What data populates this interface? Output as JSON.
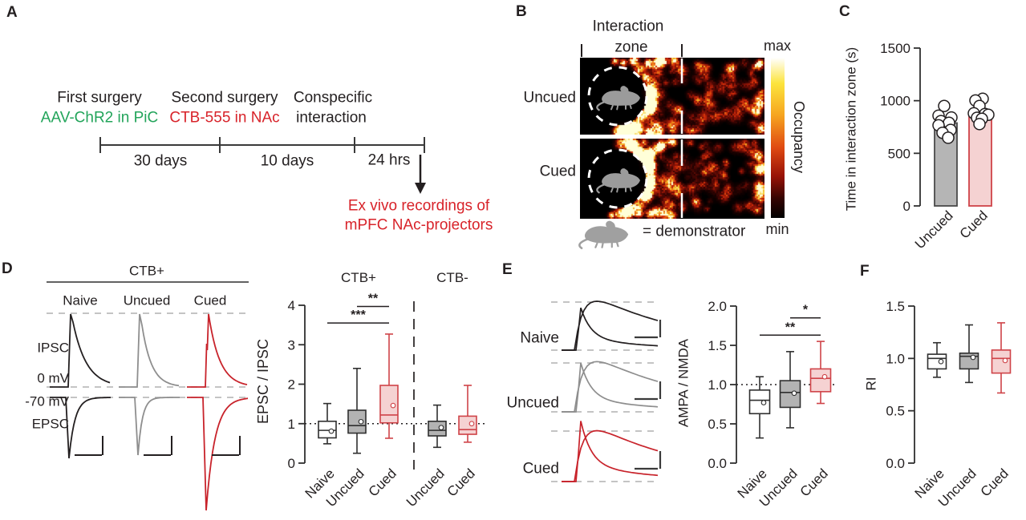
{
  "colors": {
    "ink": "#231f20",
    "green": "#22a45a",
    "red": "#d8232a",
    "trace_colors": [
      "#231f20",
      "#8e8e8e",
      "#c8232b"
    ],
    "dash_gray": "#b0b0b0",
    "gray_fill": "#b3b3b3",
    "pink_fill": "#f5d2d2",
    "pink_stroke": "#cf4348"
  },
  "panels": {
    "A": {
      "label": "A",
      "events": [
        {
          "title": "First surgery",
          "subtitle": "AAV-ChR2 in PiC"
        },
        {
          "title": "Second surgery",
          "subtitle": "CTB-555 in NAc"
        },
        {
          "title": "Conspecific",
          "subtitle": "interaction"
        }
      ],
      "durations": [
        "30 days",
        "10 days",
        "24 hrs"
      ],
      "outcome_line1": "Ex vivo recordings of",
      "outcome_line2": "mPFC NAc-projectors"
    },
    "B": {
      "label": "B",
      "zone_title_line1": "Interaction",
      "zone_title_line2": "zone",
      "row_labels": [
        "Uncued",
        "Cued"
      ],
      "colorbar_max": "max",
      "colorbar_min": "min",
      "colorbar_label": "Occupancy",
      "legend_text": "= demonstrator"
    },
    "C": {
      "label": "C"
    },
    "D": {
      "label": "D",
      "traces": {
        "header": "CTB+",
        "columns": [
          "Naive",
          "Uncued",
          "Cued"
        ],
        "left_labels": [
          "IPSC",
          "0 mV",
          "-70 mV",
          "EPSC"
        ]
      }
    },
    "E": {
      "label": "E",
      "traces": {
        "rows": [
          "Naive",
          "Uncued",
          "Cued"
        ]
      }
    },
    "F": {
      "label": "F"
    }
  },
  "chart_data": [
    {
      "id": "C",
      "type": "bar",
      "ylabel": "Time in interaction zone (s)",
      "ylim": [
        0,
        1500
      ],
      "ytick_values": [
        0,
        500,
        1000,
        1500
      ],
      "yticks": [
        "0",
        "500",
        "1000",
        "1500"
      ],
      "categories": [
        "Uncued",
        "Cued"
      ],
      "values": [
        788,
        872
      ],
      "points": [
        [
          950,
          858,
          840,
          806,
          790,
          766,
          722,
          695,
          648
        ],
        [
          1018,
          1002,
          950,
          880,
          874,
          866,
          838,
          828,
          778
        ]
      ],
      "bars": [
        {
          "fill": "#b5b5b5",
          "stroke": "#4a4a4a"
        },
        {
          "fill": "#f5d2d2",
          "stroke": "#cf4348"
        }
      ]
    },
    {
      "id": "D",
      "type": "box",
      "ylabel": "EPSC / IPSC",
      "ylim": [
        0,
        4
      ],
      "ytick_values": [
        0,
        1,
        2,
        3,
        4
      ],
      "yticks": [
        "0",
        "1",
        "2",
        "3",
        "4"
      ],
      "refline": 1,
      "sections": [
        "CTB+",
        "CTB-"
      ],
      "categories": [
        "Naive",
        "Uncued",
        "Cued",
        "Uncued",
        "Cued"
      ],
      "groups": [
        {
          "label": "Naive",
          "lo": 0.49,
          "q1": 0.64,
          "med": 0.83,
          "q3": 1.06,
          "hi": 1.51,
          "mean": 0.81,
          "fill": "#ffffff",
          "stroke": "#2f2f2f"
        },
        {
          "label": "Uncued",
          "lo": 0.25,
          "q1": 0.76,
          "med": 0.95,
          "q3": 1.34,
          "hi": 2.4,
          "mean": 1.05,
          "fill": "#b3b3b3",
          "stroke": "#2f2f2f"
        },
        {
          "label": "Cued",
          "lo": 0.63,
          "q1": 1.02,
          "med": 1.22,
          "q3": 1.97,
          "hi": 3.27,
          "mean": 1.46,
          "fill": "#f5d2d2",
          "stroke": "#cf4348"
        },
        {
          "label": "Uncued",
          "lo": 0.4,
          "q1": 0.69,
          "med": 0.83,
          "q3": 1.06,
          "hi": 1.47,
          "mean": 0.9,
          "fill": "#b3b3b3",
          "stroke": "#2f2f2f"
        },
        {
          "label": "Cued",
          "lo": 0.53,
          "q1": 0.73,
          "med": 0.85,
          "q3": 1.19,
          "hi": 1.97,
          "mean": 1.0,
          "fill": "#f5d2d2",
          "stroke": "#cf4348"
        }
      ],
      "significance": [
        {
          "from": 0,
          "to": 2,
          "label": "***",
          "y": 3.55
        },
        {
          "from": 1,
          "to": 2,
          "label": "**",
          "y": 3.97
        }
      ]
    },
    {
      "id": "E",
      "type": "box",
      "ylabel": "AMPA / NMDA",
      "ylim": [
        0,
        2
      ],
      "ytick_values": [
        0,
        0.5,
        1,
        1.5,
        2
      ],
      "yticks": [
        "0.0",
        "0.5",
        "1.0",
        "1.5",
        "2.0"
      ],
      "refline": 1,
      "categories": [
        "Naive",
        "Uncued",
        "Cued"
      ],
      "groups": [
        {
          "label": "Naive",
          "lo": 0.32,
          "q1": 0.63,
          "med": 0.8,
          "q3": 0.93,
          "hi": 1.1,
          "mean": 0.77,
          "fill": "#ffffff",
          "stroke": "#2f2f2f"
        },
        {
          "label": "Uncued",
          "lo": 0.45,
          "q1": 0.71,
          "med": 0.9,
          "q3": 1.05,
          "hi": 1.42,
          "mean": 0.89,
          "fill": "#b3b3b3",
          "stroke": "#2f2f2f"
        },
        {
          "label": "Cued",
          "lo": 0.76,
          "q1": 0.91,
          "med": 1.08,
          "q3": 1.2,
          "hi": 1.55,
          "mean": 1.1,
          "fill": "#f5d2d2",
          "stroke": "#cf4348"
        }
      ],
      "significance": [
        {
          "from": 0,
          "to": 2,
          "label": "**",
          "y": 1.63
        },
        {
          "from": 1,
          "to": 2,
          "label": "*",
          "y": 1.85
        }
      ]
    },
    {
      "id": "F",
      "type": "box",
      "ylabel": "RI",
      "ylim": [
        0,
        1.5
      ],
      "ytick_values": [
        0,
        0.5,
        1,
        1.5
      ],
      "yticks": [
        "0.0",
        "0.5",
        "1.0",
        "1.5"
      ],
      "categories": [
        "Naive",
        "Uncued",
        "Cued"
      ],
      "groups": [
        {
          "label": "Naive",
          "lo": 0.82,
          "q1": 0.9,
          "med": 1.0,
          "q3": 1.04,
          "hi": 1.15,
          "mean": 0.97,
          "fill": "#ffffff",
          "stroke": "#2f2f2f"
        },
        {
          "label": "Uncued",
          "lo": 0.77,
          "q1": 0.9,
          "med": 1.02,
          "q3": 1.05,
          "hi": 1.32,
          "mean": 1.01,
          "fill": "#b3b3b3",
          "stroke": "#2f2f2f"
        },
        {
          "label": "Cued",
          "lo": 0.67,
          "q1": 0.86,
          "med": 1.0,
          "q3": 1.08,
          "hi": 1.34,
          "mean": 0.98,
          "fill": "#f5d2d2",
          "stroke": "#cf4348"
        }
      ]
    }
  ]
}
